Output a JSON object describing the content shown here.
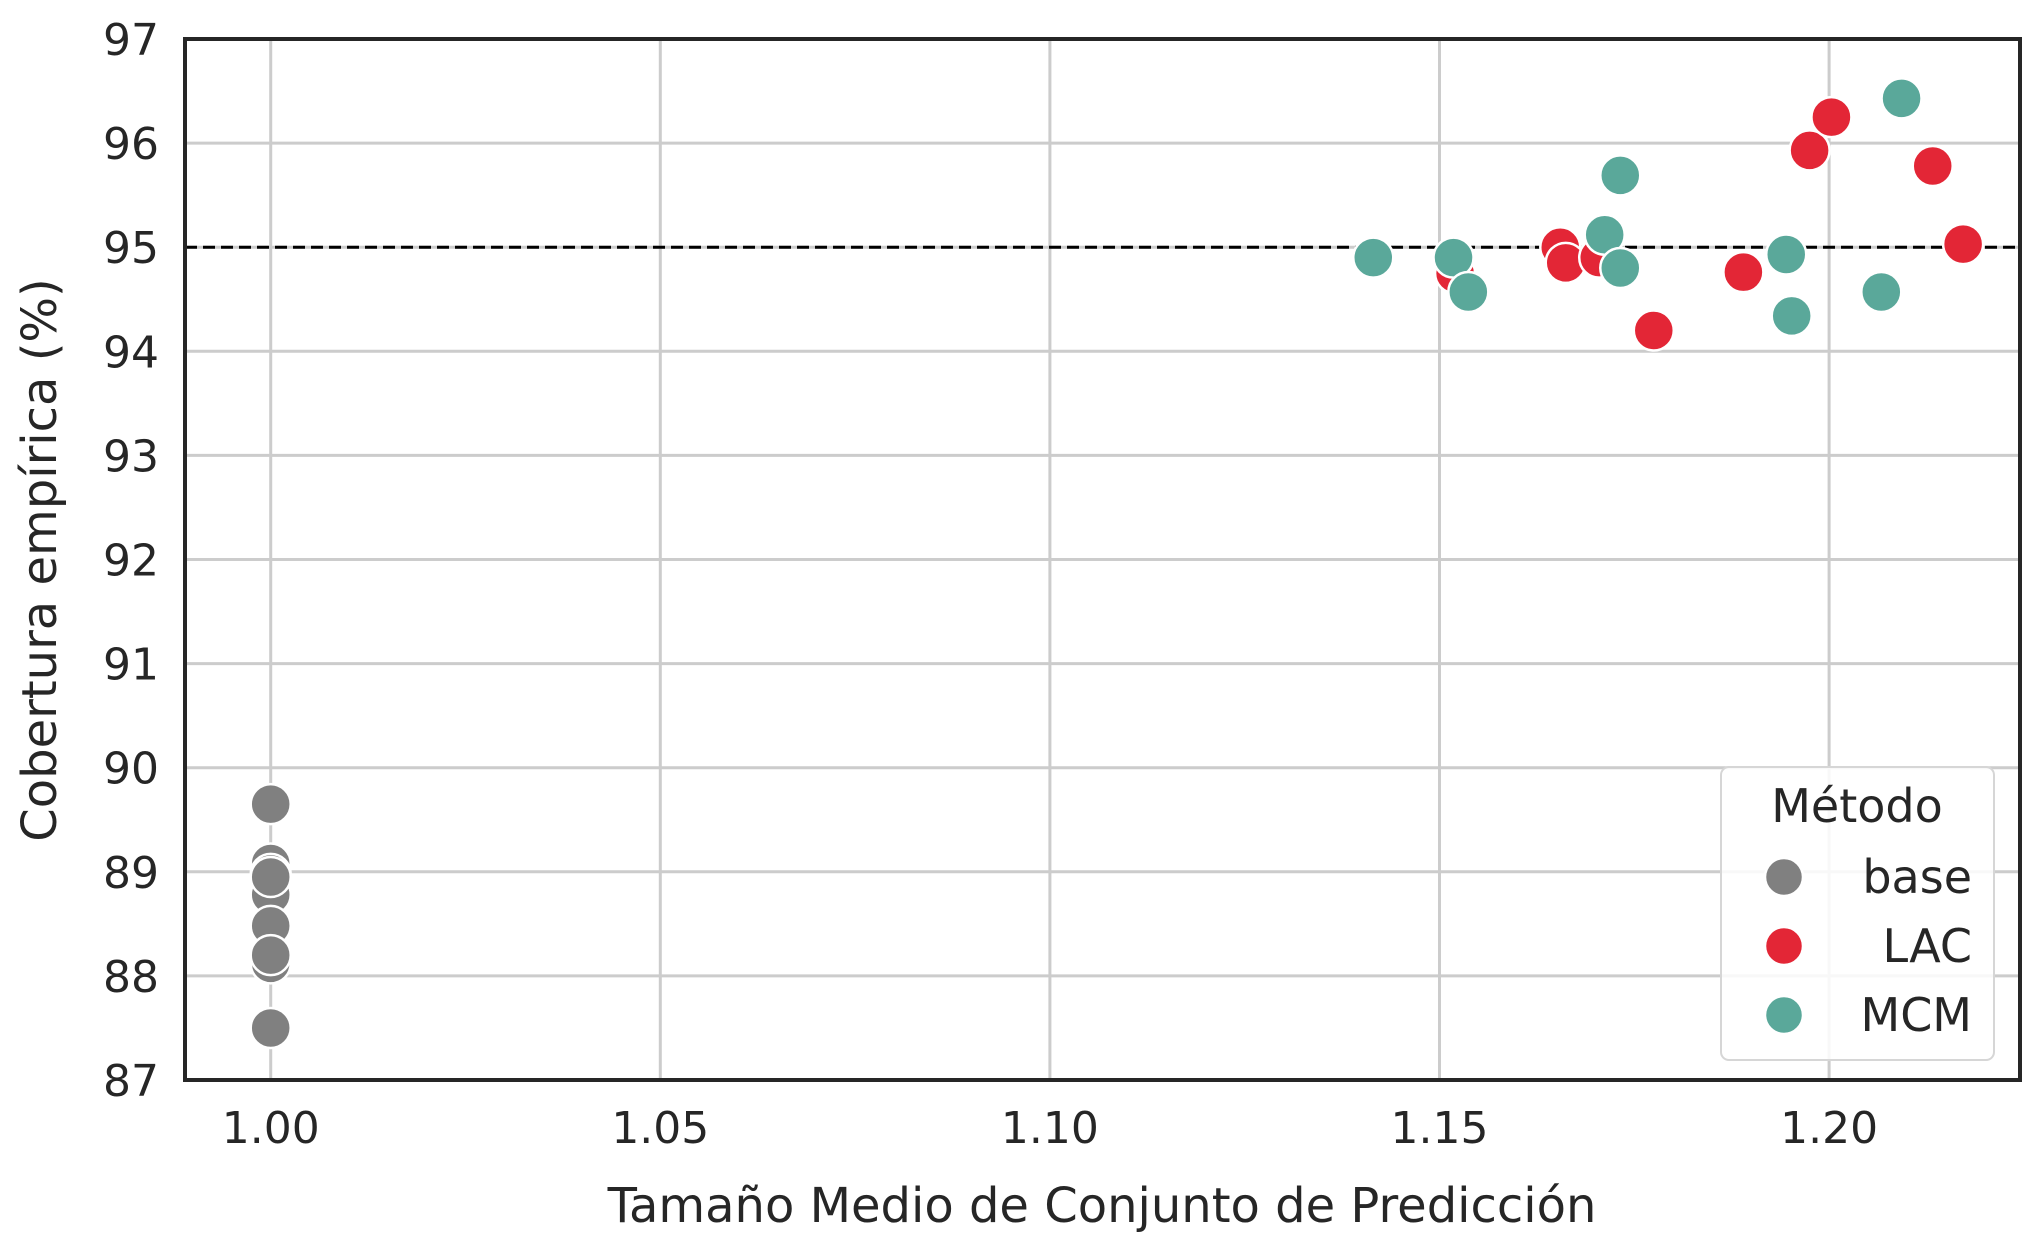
{
  "chart_data": {
    "type": "scatter",
    "title": "",
    "xlabel": "Tamaño Medio de Conjunto de Predicción",
    "ylabel": "Cobertura empírica (%)",
    "xlim": [
      0.989,
      1.2245
    ],
    "ylim": [
      87,
      97
    ],
    "xticks": [
      1.0,
      1.05,
      1.1,
      1.15,
      1.2
    ],
    "xtick_labels": [
      "1.00",
      "1.05",
      "1.10",
      "1.15",
      "1.20"
    ],
    "yticks": [
      87,
      88,
      89,
      90,
      91,
      92,
      93,
      94,
      95,
      96,
      97
    ],
    "ytick_labels": [
      "87",
      "88",
      "89",
      "90",
      "91",
      "92",
      "93",
      "94",
      "95",
      "96",
      "97"
    ],
    "grid": true,
    "reference_line": {
      "y": 95,
      "style": "dashed",
      "color": "#000000"
    },
    "legend": {
      "title": "Método",
      "placement": "bottom-right"
    },
    "series": [
      {
        "name": "base",
        "color": "#808080",
        "points": [
          {
            "x": 1.0,
            "y": 89.65
          },
          {
            "x": 1.0,
            "y": 89.08
          },
          {
            "x": 1.0,
            "y": 88.98
          },
          {
            "x": 1.0,
            "y": 88.78
          },
          {
            "x": 1.0,
            "y": 88.48
          },
          {
            "x": 1.0,
            "y": 88.12
          },
          {
            "x": 1.0,
            "y": 88.2
          },
          {
            "x": 1.0,
            "y": 88.95
          },
          {
            "x": 1.0,
            "y": 87.5
          }
        ]
      },
      {
        "name": "LAC",
        "color": "#E32636",
        "points": [
          {
            "x": 1.152,
            "y": 94.75
          },
          {
            "x": 1.1655,
            "y": 95.0
          },
          {
            "x": 1.1662,
            "y": 94.85
          },
          {
            "x": 1.1705,
            "y": 94.9
          },
          {
            "x": 1.1775,
            "y": 94.2
          },
          {
            "x": 1.189,
            "y": 94.76
          },
          {
            "x": 1.1975,
            "y": 95.93
          },
          {
            "x": 1.2003,
            "y": 96.25
          },
          {
            "x": 1.2133,
            "y": 95.78
          },
          {
            "x": 1.2172,
            "y": 95.03
          }
        ]
      },
      {
        "name": "MCM",
        "color": "#5AA89A",
        "points": [
          {
            "x": 1.1415,
            "y": 94.9
          },
          {
            "x": 1.1518,
            "y": 94.9
          },
          {
            "x": 1.1537,
            "y": 94.57
          },
          {
            "x": 1.1712,
            "y": 95.12
          },
          {
            "x": 1.1732,
            "y": 95.69
          },
          {
            "x": 1.1732,
            "y": 94.8
          },
          {
            "x": 1.1945,
            "y": 94.93
          },
          {
            "x": 1.1952,
            "y": 94.34
          },
          {
            "x": 1.2067,
            "y": 94.57
          },
          {
            "x": 1.2093,
            "y": 96.43
          }
        ]
      }
    ]
  }
}
